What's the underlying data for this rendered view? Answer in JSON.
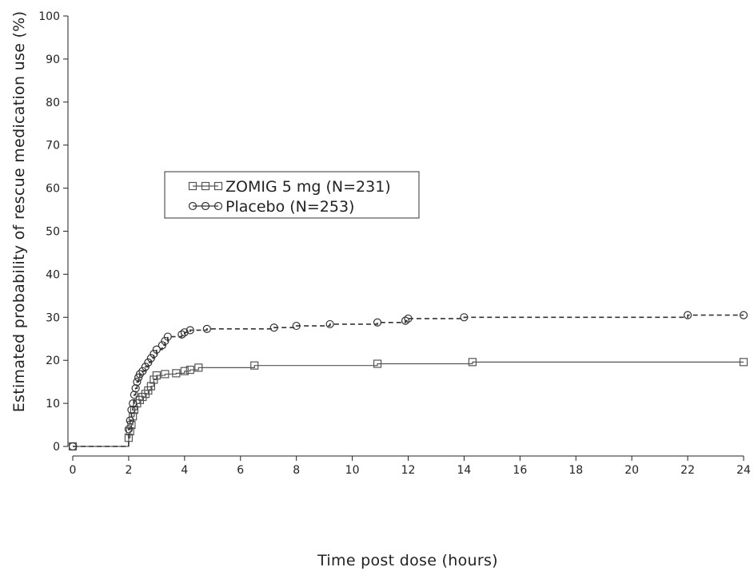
{
  "chart_data": {
    "type": "line",
    "title": "",
    "xlabel": "Time post dose (hours)",
    "ylabel": "Estimated probability of rescue medication use (%)",
    "xlim": [
      0,
      24
    ],
    "ylim": [
      0,
      100
    ],
    "xticks": [
      0,
      2,
      4,
      6,
      8,
      10,
      12,
      14,
      16,
      18,
      20,
      22,
      24
    ],
    "yticks": [
      0,
      10,
      20,
      30,
      40,
      50,
      60,
      70,
      80,
      90,
      100
    ],
    "grid": false,
    "legend_position": "upper-left",
    "series": [
      {
        "name": "ZOMIG 5 mg (N=231)",
        "marker": "square",
        "line_style": "solid",
        "color": "#555555",
        "x": [
          0,
          2.0,
          2.05,
          2.1,
          2.15,
          2.2,
          2.3,
          2.4,
          2.5,
          2.6,
          2.7,
          2.8,
          2.9,
          3.0,
          3.3,
          3.7,
          4.0,
          4.2,
          4.5,
          6.5,
          10.9,
          14.3,
          24.0
        ],
        "y": [
          0,
          2.0,
          3.5,
          5.0,
          7.0,
          8.5,
          10.0,
          10.8,
          11.5,
          12.2,
          13.0,
          14.0,
          15.5,
          16.5,
          16.8,
          17.0,
          17.5,
          17.8,
          18.3,
          18.8,
          19.2,
          19.6,
          19.6
        ]
      },
      {
        "name": "Placebo (N=253)",
        "marker": "circle",
        "line_style": "dashed",
        "color": "#333333",
        "x": [
          0,
          2.0,
          2.05,
          2.1,
          2.15,
          2.2,
          2.25,
          2.3,
          2.35,
          2.4,
          2.5,
          2.6,
          2.7,
          2.8,
          2.9,
          3.0,
          3.2,
          3.3,
          3.4,
          3.9,
          4.0,
          4.2,
          4.8,
          7.2,
          8.0,
          9.2,
          10.9,
          11.9,
          12.0,
          14.0,
          22.0,
          24.0
        ],
        "y": [
          0,
          4.0,
          6.0,
          8.5,
          10.0,
          12.0,
          13.5,
          15.0,
          16.0,
          16.8,
          17.5,
          18.5,
          19.5,
          20.5,
          21.5,
          22.5,
          23.5,
          24.5,
          25.5,
          26.0,
          26.5,
          27.0,
          27.3,
          27.6,
          28.0,
          28.4,
          28.8,
          29.2,
          29.7,
          30.0,
          30.5,
          30.5
        ]
      }
    ]
  }
}
